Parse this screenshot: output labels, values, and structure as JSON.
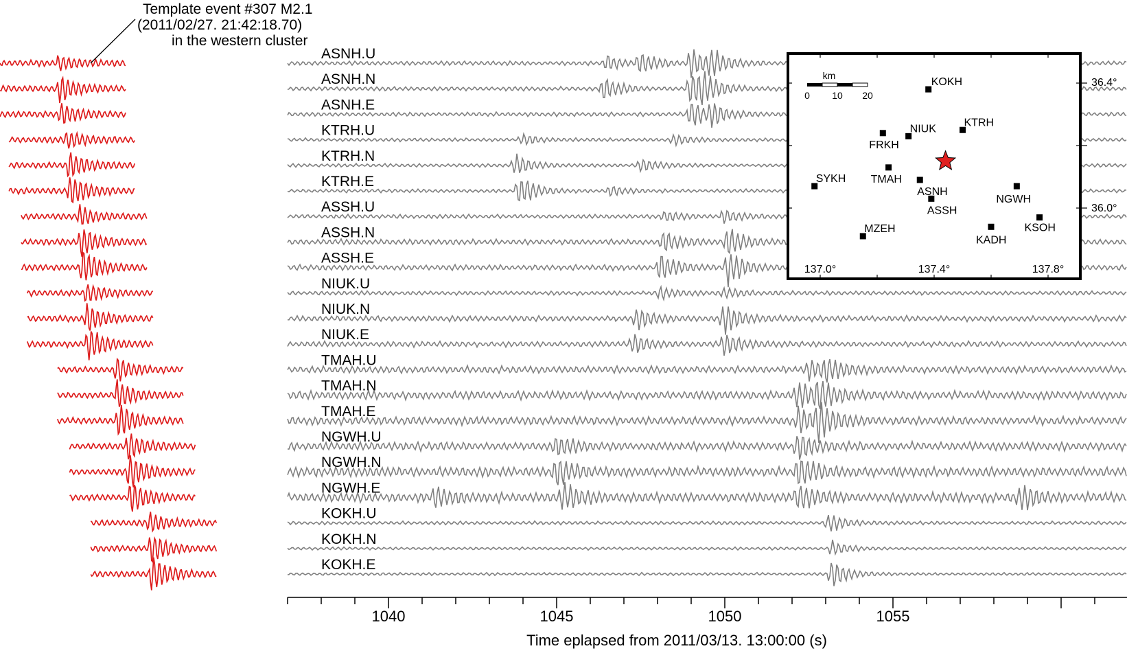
{
  "chart_data": {
    "type": "line",
    "description": "Template matching figure: red template waveforms of a past event (left) aligned against continuous gray waveforms at 21 station components.",
    "annotation": {
      "line1": "Template event #307 M2.1",
      "line2": "(2011/02/27. 21:42:18.70)",
      "line3": "in the western cluster"
    },
    "channels": [
      "ASNH.U",
      "ASNH.N",
      "ASNH.E",
      "KTRH.U",
      "KTRH.N",
      "KTRH.E",
      "ASSH.U",
      "ASSH.N",
      "ASSH.E",
      "NIUK.U",
      "NIUK.N",
      "NIUK.E",
      "TMAH.U",
      "TMAH.N",
      "TMAH.E",
      "NGWH.U",
      "NGWH.N",
      "NGWH.E",
      "KOKH.U",
      "KOKH.N",
      "KOKH.E"
    ],
    "x_axis": {
      "label": "Time eplapsed from 2011/03/13. 13:00:00 (s)",
      "range": [
        1037,
        1062
      ],
      "major_ticks": [
        1040,
        1045,
        1050,
        1055
      ],
      "tick_labels": [
        "1040",
        "1045",
        "1050",
        "1055"
      ]
    },
    "template_offsets_s": [
      0.0,
      0.0,
      0.0,
      0.3,
      0.3,
      0.3,
      0.7,
      0.7,
      0.7,
      0.9,
      0.9,
      0.9,
      1.9,
      1.9,
      1.9,
      2.3,
      2.3,
      2.3,
      3.0,
      3.0,
      3.0
    ],
    "colors": {
      "template": "#dd1c1c",
      "continuous": "#808080",
      "star": "#e02020",
      "axis": "#000000"
    },
    "inset_map": {
      "scale_label": "km",
      "scale_ticks": [
        "0",
        "10",
        "20"
      ],
      "lon_ticks": [
        "137.0°",
        "137.4°",
        "137.8°"
      ],
      "lat_ticks": [
        "36.0°",
        "36.4°"
      ],
      "stations": [
        {
          "name": "KOKH",
          "lon": 137.38,
          "lat": 36.38
        },
        {
          "name": "KTRH",
          "lon": 137.5,
          "lat": 36.25
        },
        {
          "name": "FRKH",
          "lon": 137.22,
          "lat": 36.24
        },
        {
          "name": "NIUK",
          "lon": 137.31,
          "lat": 36.23
        },
        {
          "name": "TMAH",
          "lon": 137.24,
          "lat": 36.13
        },
        {
          "name": "ASNH",
          "lon": 137.35,
          "lat": 36.09
        },
        {
          "name": "SYKH",
          "lon": 136.98,
          "lat": 36.07
        },
        {
          "name": "NGWH",
          "lon": 137.69,
          "lat": 36.07
        },
        {
          "name": "ASSH",
          "lon": 137.39,
          "lat": 36.03
        },
        {
          "name": "KSOH",
          "lon": 137.77,
          "lat": 35.97
        },
        {
          "name": "KADH",
          "lon": 137.6,
          "lat": 35.94
        },
        {
          "name": "MZEH",
          "lon": 137.15,
          "lat": 35.91
        }
      ],
      "event_star": {
        "lon": 137.44,
        "lat": 36.15
      }
    }
  }
}
